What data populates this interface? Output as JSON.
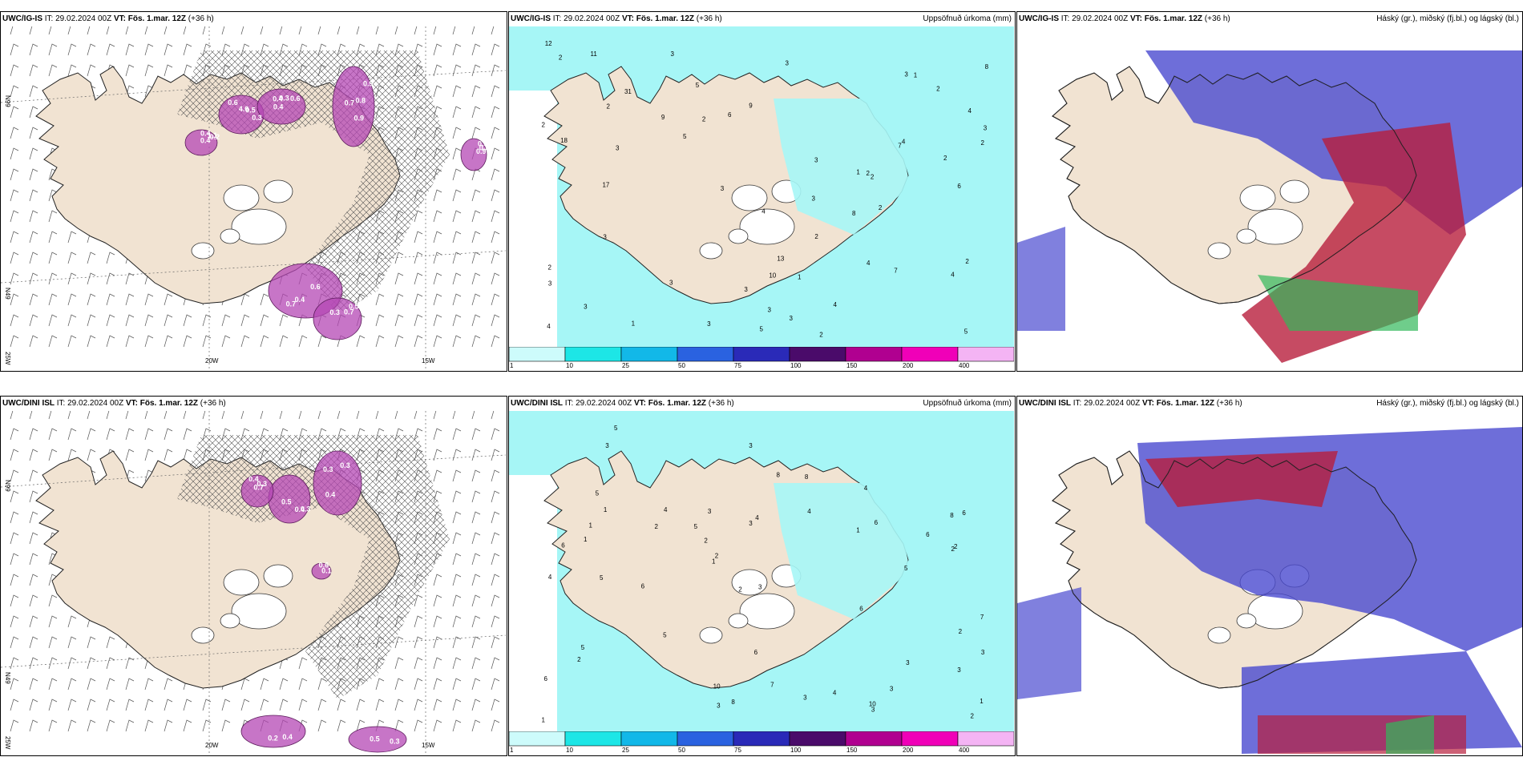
{
  "rows": [
    {
      "model": "UWC/IG-IS",
      "it_label": "IT:",
      "it_value": "29.02.2024 00Z",
      "vt_label": "VT:",
      "vt_value": "Fös. 1.mar. 12Z",
      "lead": "(+36 h)",
      "panels": {
        "wind": {
          "numbers": [
            "0.6",
            "0.3",
            "0.9",
            "0.4",
            "0.7",
            "0.5",
            "0.3",
            "0.5",
            "0.6",
            "0.9",
            "0.2",
            "0.4",
            "0.3",
            "0.5",
            "0.3",
            "0.4",
            "0.7",
            "1.1",
            "0.6",
            "0.7",
            "0.9",
            "4.6",
            "0.4",
            "0.8",
            "0.4"
          ],
          "axis_labels": [
            "N99",
            "N49",
            "25W",
            "20W",
            "15W"
          ]
        },
        "precip": {
          "title": "Uppsöfnuð úrkoma (mm)",
          "values": [
            "2",
            "5",
            "3",
            "2",
            "3",
            "2",
            "6",
            "3",
            "7",
            "4",
            "3",
            "5",
            "9",
            "3",
            "3",
            "5",
            "10",
            "5",
            "2",
            "3",
            "4",
            "8",
            "4",
            "7",
            "3",
            "6",
            "2",
            "3",
            "3",
            "1",
            "3",
            "2",
            "4",
            "2",
            "2",
            "1",
            "3",
            "3",
            "2",
            "4",
            "2",
            "3",
            "8",
            "2",
            "2",
            "3",
            "3",
            "1",
            "2",
            "1",
            "9",
            "12",
            "13",
            "18",
            "2",
            "4",
            "4",
            "11",
            "17",
            "31"
          ]
        },
        "cloud": {
          "title": "Háský (gr.), miðský (fj.bl.) og lágský (bl.)"
        }
      }
    },
    {
      "model": "UWC/DINI ISL",
      "it_label": "IT:",
      "it_value": "29.02.2024 00Z",
      "vt_label": "VT:",
      "vt_value": "Fös. 1.mar. 12Z",
      "lead": "(+36 h)",
      "panels": {
        "wind": {
          "numbers": [
            "0.3",
            "0.5",
            "0.4",
            "0.1",
            "0.4",
            "0.5",
            "0.3",
            "0.4",
            "0.3",
            "0.6",
            "0.2",
            "0.3",
            "0.4",
            "0.3",
            "0.7"
          ],
          "axis_labels": [
            "N99",
            "N49",
            "25W",
            "20W",
            "15W"
          ]
        },
        "precip": {
          "title": "Uppsöfnuð úrkoma (mm)",
          "values": [
            "1",
            "1",
            "3",
            "2",
            "2",
            "4",
            "10",
            "1",
            "7",
            "6",
            "4",
            "3",
            "3",
            "3",
            "8",
            "3",
            "2",
            "2",
            "5",
            "7",
            "5",
            "10",
            "4",
            "6",
            "5",
            "1",
            "1",
            "2",
            "3",
            "4",
            "5",
            "6",
            "4",
            "5",
            "6",
            "2",
            "8",
            "3",
            "5",
            "3",
            "3",
            "5",
            "3",
            "2",
            "6",
            "3",
            "4",
            "2",
            "1",
            "1",
            "2",
            "6",
            "8",
            "6",
            "3",
            "8",
            "6"
          ]
        },
        "cloud": {
          "title": "Háský (gr.), miðský (fj.bl.) og lágský (bl.)"
        }
      }
    }
  ],
  "colorbar": {
    "ticks": [
      "1",
      "10",
      "25",
      "50",
      "75",
      "100",
      "150",
      "200",
      "400"
    ],
    "colors": [
      "#cdfbfb",
      "#1de6e6",
      "#12b8e8",
      "#2a62e0",
      "#2a2ab8",
      "#4a0b6a",
      "#b00090",
      "#f000b8",
      "#f4b4f4"
    ]
  },
  "colors": {
    "land": "#f1e3d2",
    "light_precip": "#a6f6f6",
    "high_cloud_green": "#32b85a",
    "mid_cloud_red": "#b81e3c",
    "low_cloud_blue": "#4a4ad0"
  }
}
